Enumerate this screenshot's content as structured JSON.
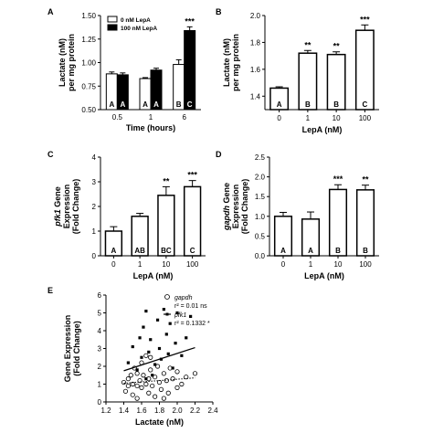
{
  "chart_data": [
    {
      "panel": "A",
      "type": "bar",
      "xlabel": "Time (hours)",
      "ylabel": [
        "Lactate (nM)",
        "per mg protein"
      ],
      "ylim": [
        0.5,
        1.5
      ],
      "yticks": [
        "0.50",
        "0.75",
        "1.00",
        "1.25",
        "1.50"
      ],
      "categories": [
        "0.5",
        "1",
        "6"
      ],
      "series": [
        {
          "name": "0 nM LepA",
          "color": "#ffffff",
          "values": [
            0.88,
            0.83,
            0.98
          ],
          "errors": [
            0.02,
            0.01,
            0.05
          ],
          "letters": [
            "A",
            "A",
            "B"
          ],
          "stars": [
            "",
            "",
            ""
          ]
        },
        {
          "name": "100 nM LepA",
          "color": "#000000",
          "values": [
            0.87,
            0.92,
            1.34
          ],
          "errors": [
            0.02,
            0.02,
            0.04
          ],
          "letters": [
            "A",
            "A",
            "C"
          ],
          "stars": [
            "",
            "",
            "***"
          ]
        }
      ]
    },
    {
      "panel": "B",
      "type": "bar",
      "xlabel": "LepA (nM)",
      "ylabel": [
        "Lactate (nM)",
        "per mg protein"
      ],
      "ylim": [
        1.3,
        2.0
      ],
      "yticks": [
        "1.4",
        "1.6",
        "1.8",
        "2.0"
      ],
      "categories": [
        "0",
        "1",
        "10",
        "100"
      ],
      "values": [
        1.46,
        1.72,
        1.71,
        1.89
      ],
      "errors": [
        0.01,
        0.02,
        0.02,
        0.04
      ],
      "letters": [
        "A",
        "B",
        "B",
        "C"
      ],
      "stars": [
        "",
        "**",
        "**",
        "***"
      ]
    },
    {
      "panel": "C",
      "type": "bar",
      "xlabel": "LepA (nM)",
      "ylabel": [
        "pfk1 Gene",
        "Expression",
        "(Fold Change)"
      ],
      "ylim": [
        0,
        4
      ],
      "yticks": [
        "0",
        "1",
        "2",
        "3",
        "4"
      ],
      "categories": [
        "0",
        "1",
        "10",
        "100"
      ],
      "values": [
        1.0,
        1.6,
        2.45,
        2.8
      ],
      "errors": [
        0.18,
        0.12,
        0.35,
        0.25
      ],
      "letters": [
        "A",
        "AB",
        "BC",
        "C"
      ],
      "stars": [
        "",
        "",
        "**",
        "***"
      ]
    },
    {
      "panel": "D",
      "type": "bar",
      "xlabel": "LepA (nM)",
      "ylabel": [
        "gapdh Gene",
        "Expression",
        "(Fold Change)"
      ],
      "ylim": [
        0,
        2.5
      ],
      "yticks": [
        "0.0",
        "0.5",
        "1.0",
        "1.5",
        "2.0",
        "2.5"
      ],
      "categories": [
        "0",
        "1",
        "10",
        "100"
      ],
      "values": [
        1.0,
        0.93,
        1.68,
        1.67
      ],
      "errors": [
        0.1,
        0.18,
        0.12,
        0.12
      ],
      "letters": [
        "A",
        "A",
        "B",
        "B"
      ],
      "stars": [
        "",
        "",
        "***",
        "**"
      ]
    },
    {
      "panel": "E",
      "type": "scatter",
      "xlabel": "Lactate (nM)",
      "ylabel": [
        "Gene Expression",
        "(Fold Change)"
      ],
      "xlim": [
        1.2,
        2.4
      ],
      "ylim": [
        0,
        6
      ],
      "xticks": [
        "1.2",
        "1.4",
        "1.6",
        "1.8",
        "2.0",
        "2.2",
        "2.4"
      ],
      "yticks": [
        "0",
        "1",
        "2",
        "3",
        "4",
        "5",
        "6"
      ],
      "series": [
        {
          "name": "gapdh",
          "marker": "open-circle",
          "stat": "r² = 0.01 ns",
          "fit": [
            [
              1.4,
              1.05
            ],
            [
              2.2,
              1.35
            ]
          ],
          "points": [
            [
              1.4,
              1.1
            ],
            [
              1.42,
              0.6
            ],
            [
              1.45,
              1.3
            ],
            [
              1.45,
              0.9
            ],
            [
              1.48,
              1.5
            ],
            [
              1.5,
              1.0
            ],
            [
              1.5,
              0.4
            ],
            [
              1.52,
              1.9
            ],
            [
              1.55,
              1.6
            ],
            [
              1.55,
              0.2
            ],
            [
              1.58,
              1.2
            ],
            [
              1.6,
              0.8
            ],
            [
              1.6,
              2.2
            ],
            [
              1.62,
              1.5
            ],
            [
              1.65,
              1.0
            ],
            [
              1.65,
              2.6
            ],
            [
              1.68,
              0.5
            ],
            [
              1.68,
              1.3
            ],
            [
              1.7,
              1.8
            ],
            [
              1.72,
              0.9
            ],
            [
              1.75,
              1.4
            ],
            [
              1.75,
              0.3
            ],
            [
              1.78,
              2.0
            ],
            [
              1.8,
              1.1
            ],
            [
              1.82,
              0.7
            ],
            [
              1.85,
              1.6
            ],
            [
              1.88,
              1.2
            ],
            [
              1.9,
              0.5
            ],
            [
              1.92,
              1.9
            ],
            [
              1.95,
              1.3
            ],
            [
              2.0,
              0.8
            ],
            [
              2.0,
              1.7
            ],
            [
              2.05,
              1.0
            ],
            [
              2.1,
              1.4
            ],
            [
              2.2,
              1.6
            ],
            [
              1.55,
              0.9
            ],
            [
              1.7,
              2.5
            ],
            [
              1.85,
              0.2
            ]
          ]
        },
        {
          "name": "pfk1",
          "marker": "filled-square",
          "stat": "r² = 0.1332 *",
          "fit": [
            [
              1.4,
              1.75
            ],
            [
              2.2,
              3.05
            ]
          ],
          "points": [
            [
              1.45,
              2.2
            ],
            [
              1.5,
              3.1
            ],
            [
              1.55,
              1.8
            ],
            [
              1.6,
              2.5
            ],
            [
              1.62,
              4.2
            ],
            [
              1.65,
              5.1
            ],
            [
              1.68,
              2.8
            ],
            [
              1.7,
              3.5
            ],
            [
              1.72,
              1.5
            ],
            [
              1.75,
              2.1
            ],
            [
              1.78,
              4.6
            ],
            [
              1.8,
              3.0
            ],
            [
              1.82,
              2.4
            ],
            [
              1.85,
              5.2
            ],
            [
              1.88,
              3.8
            ],
            [
              1.9,
              2.7
            ],
            [
              1.92,
              4.4
            ],
            [
              1.95,
              1.9
            ],
            [
              1.98,
              3.3
            ],
            [
              2.0,
              5.0
            ],
            [
              2.05,
              2.6
            ],
            [
              2.1,
              3.6
            ],
            [
              2.15,
              4.8
            ],
            [
              1.58,
              3.6
            ],
            [
              1.65,
              1.3
            ]
          ]
        }
      ]
    }
  ]
}
